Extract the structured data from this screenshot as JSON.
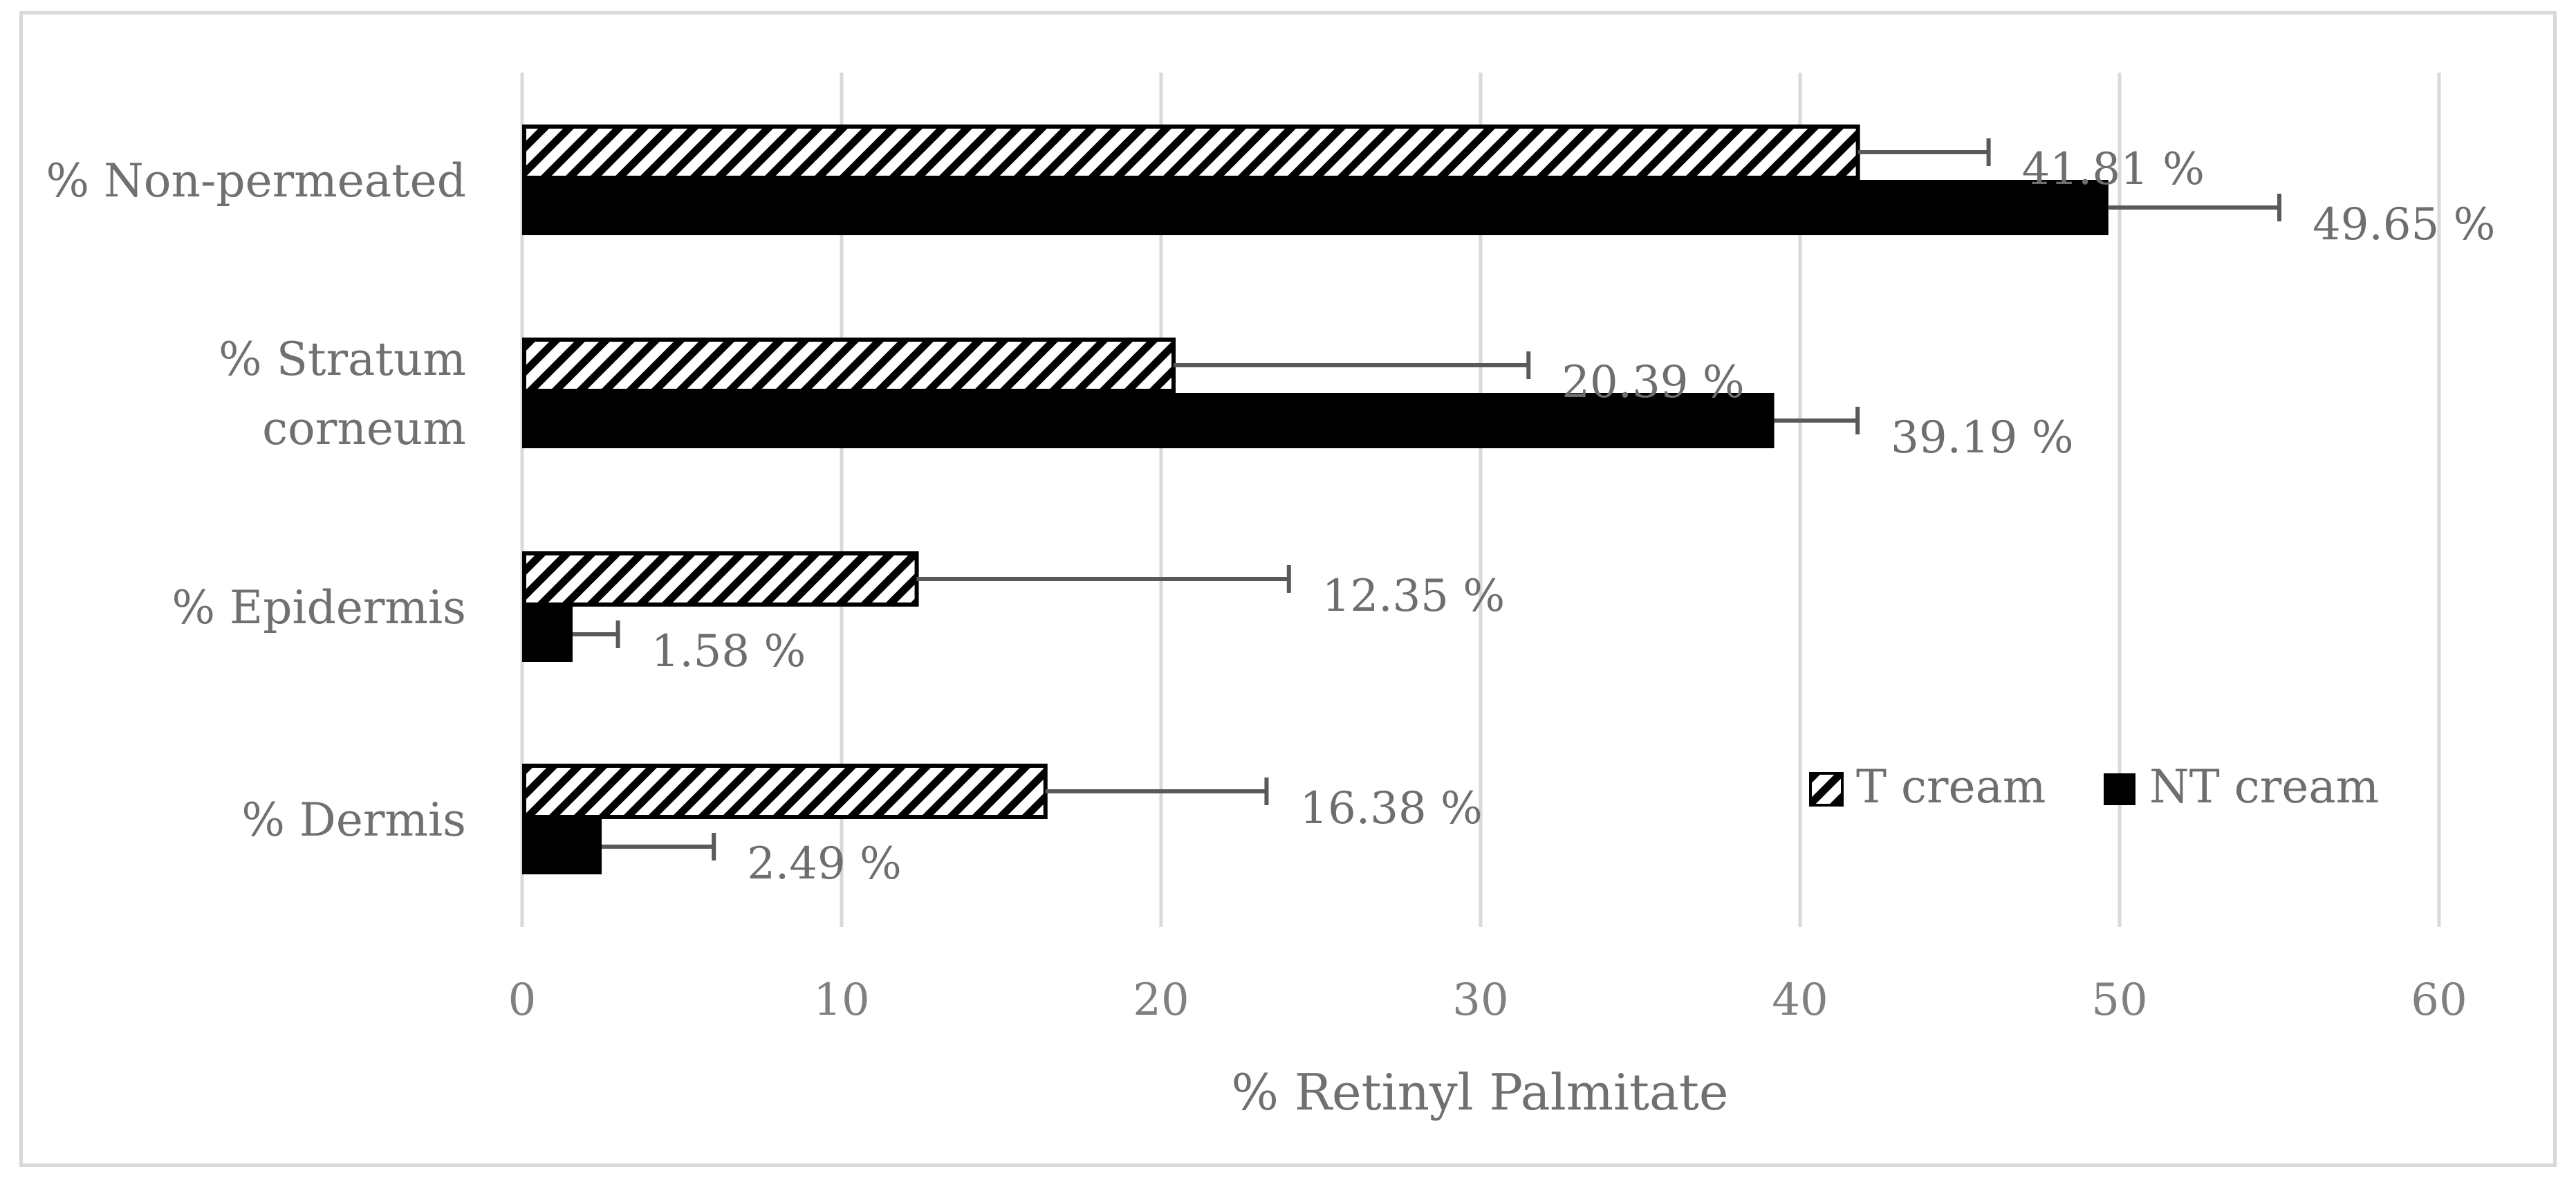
{
  "chart_data": {
    "type": "bar",
    "orientation": "horizontal",
    "categories": [
      [
        "% Non-permeated"
      ],
      [
        "% Stratum",
        "corneum"
      ],
      [
        "% Epidermis"
      ],
      [
        "% Dermis"
      ]
    ],
    "series": [
      {
        "name": "T cream",
        "fill": "hatch",
        "values": [
          41.81,
          20.39,
          12.35,
          16.38
        ],
        "error_upper": [
          45.9,
          31.5,
          24.0,
          23.3
        ],
        "labels": [
          "41.81 %",
          "20.39 %",
          "12.35 %",
          "16.38 %"
        ]
      },
      {
        "name": "NT cream",
        "fill": "solid",
        "values": [
          49.65,
          39.19,
          1.58,
          2.49
        ],
        "error_upper": [
          55.0,
          41.8,
          3.0,
          6.0
        ],
        "labels": [
          "49.65 %",
          "39.19 %",
          "1.58 %",
          "2.49 %"
        ]
      }
    ],
    "xlabel": "% Retinyl Palmitate",
    "xlim": [
      0,
      60
    ],
    "xticks": [
      "0",
      "10",
      "20",
      "30",
      "40",
      "50",
      "60"
    ],
    "grid": true,
    "legend_position": "bottom-right",
    "colors": {
      "bar": "#000000",
      "grid": "#d9d9d9",
      "text": "#707070",
      "errorbar": "#595959"
    }
  }
}
